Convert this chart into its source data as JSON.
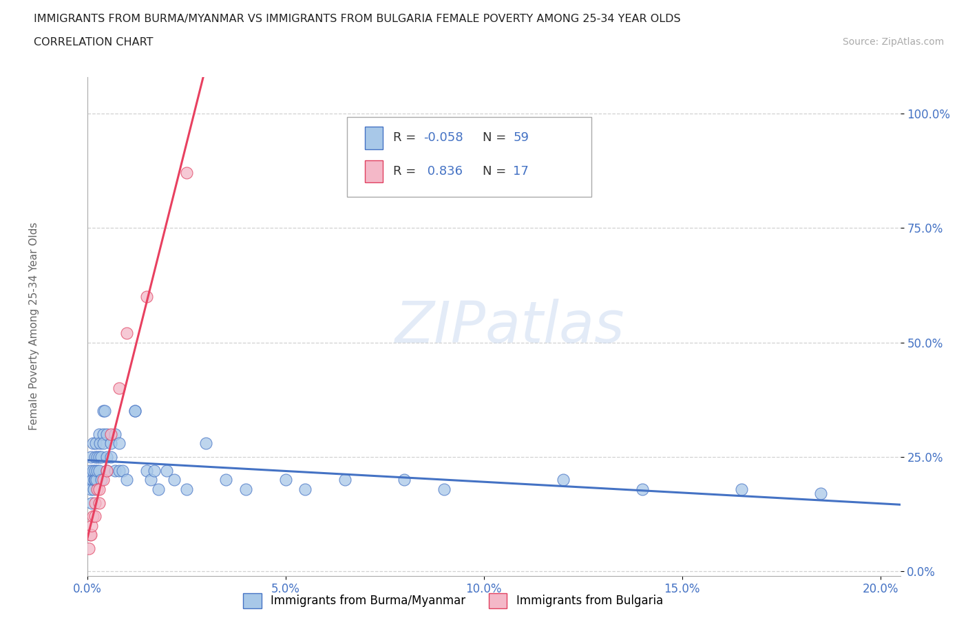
{
  "title_line1": "IMMIGRANTS FROM BURMA/MYANMAR VS IMMIGRANTS FROM BULGARIA FEMALE POVERTY AMONG 25-34 YEAR OLDS",
  "title_line2": "CORRELATION CHART",
  "source_text": "Source: ZipAtlas.com",
  "ylabel": "Female Poverty Among 25-34 Year Olds",
  "xlim": [
    0.0,
    0.205
  ],
  "ylim": [
    -0.01,
    1.08
  ],
  "ytick_vals": [
    0.0,
    0.25,
    0.5,
    0.75,
    1.0
  ],
  "ytick_labels": [
    "0.0%",
    "25.0%",
    "50.0%",
    "75.0%",
    "100.0%"
  ],
  "xtick_vals": [
    0.0,
    0.05,
    0.1,
    0.15,
    0.2
  ],
  "xtick_labels": [
    "0.0%",
    "5.0%",
    "10.0%",
    "15.0%",
    "20.0%"
  ],
  "watermark": "ZIPatlas",
  "r1": "-0.058",
  "n1": "59",
  "r2": "0.836",
  "n2": "17",
  "color_burma_face": "#a8c8e8",
  "color_burma_edge": "#4472c4",
  "color_bulgaria_face": "#f4b8c8",
  "color_bulgaria_edge": "#e04060",
  "line_color_burma": "#4472c4",
  "line_color_bulgaria": "#e84060",
  "label_burma": "Immigrants from Burma/Myanmar",
  "label_bulgaria": "Immigrants from Bulgaria",
  "background_color": "#ffffff",
  "grid_color": "#cccccc",
  "tick_color": "#4472c4",
  "title_color": "#222222",
  "burma_x": [
    0.0005,
    0.0008,
    0.001,
    0.001,
    0.0012,
    0.0013,
    0.0015,
    0.0015,
    0.0016,
    0.0018,
    0.002,
    0.002,
    0.002,
    0.0022,
    0.0023,
    0.0025,
    0.0025,
    0.003,
    0.003,
    0.003,
    0.0032,
    0.0035,
    0.0035,
    0.004,
    0.004,
    0.004,
    0.0045,
    0.005,
    0.005,
    0.005,
    0.006,
    0.006,
    0.007,
    0.007,
    0.008,
    0.008,
    0.009,
    0.01,
    0.012,
    0.012,
    0.015,
    0.016,
    0.017,
    0.018,
    0.02,
    0.022,
    0.025,
    0.03,
    0.035,
    0.04,
    0.05,
    0.055,
    0.065,
    0.08,
    0.09,
    0.12,
    0.14,
    0.165,
    0.185
  ],
  "burma_y": [
    0.2,
    0.22,
    0.18,
    0.25,
    0.15,
    0.2,
    0.22,
    0.28,
    0.18,
    0.2,
    0.2,
    0.25,
    0.22,
    0.28,
    0.2,
    0.25,
    0.22,
    0.3,
    0.22,
    0.25,
    0.28,
    0.2,
    0.25,
    0.35,
    0.3,
    0.28,
    0.35,
    0.3,
    0.25,
    0.22,
    0.28,
    0.25,
    0.3,
    0.22,
    0.28,
    0.22,
    0.22,
    0.2,
    0.35,
    0.35,
    0.22,
    0.2,
    0.22,
    0.18,
    0.22,
    0.2,
    0.18,
    0.28,
    0.2,
    0.18,
    0.2,
    0.18,
    0.2,
    0.2,
    0.18,
    0.2,
    0.18,
    0.18,
    0.17
  ],
  "bulgaria_x": [
    0.0005,
    0.0008,
    0.001,
    0.0012,
    0.0015,
    0.002,
    0.002,
    0.0025,
    0.003,
    0.003,
    0.004,
    0.005,
    0.006,
    0.008,
    0.01,
    0.015,
    0.025
  ],
  "bulgaria_y": [
    0.05,
    0.08,
    0.08,
    0.1,
    0.12,
    0.12,
    0.15,
    0.18,
    0.15,
    0.18,
    0.2,
    0.22,
    0.3,
    0.4,
    0.52,
    0.6,
    0.87
  ]
}
